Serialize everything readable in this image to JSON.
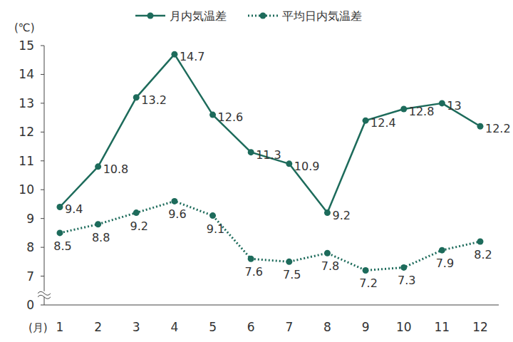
{
  "chart_data": {
    "type": "line",
    "x_label": "(月)",
    "y_label": "(℃)",
    "categories": [
      "1",
      "2",
      "3",
      "4",
      "5",
      "6",
      "7",
      "8",
      "9",
      "10",
      "11",
      "12"
    ],
    "series": [
      {
        "name": "月内気温差",
        "color": "#1d6b5b",
        "marker": "circle",
        "line_style": "solid",
        "values": [
          9.4,
          10.8,
          13.2,
          14.7,
          12.6,
          11.3,
          10.9,
          9.2,
          12.4,
          12.8,
          13,
          12.2
        ]
      },
      {
        "name": "平均日内気温差",
        "color": "#1d6b5b",
        "marker": "circle",
        "line_style": "dotted",
        "values": [
          8.5,
          8.8,
          9.2,
          9.6,
          9.1,
          7.6,
          7.5,
          7.8,
          7.2,
          7.3,
          7.9,
          8.2
        ]
      }
    ],
    "ylim": [
      0,
      15
    ],
    "yticks": [
      0,
      7,
      8,
      9,
      10,
      11,
      12,
      13,
      14,
      15
    ],
    "grid": false,
    "legend": "top",
    "data_labels": true
  }
}
